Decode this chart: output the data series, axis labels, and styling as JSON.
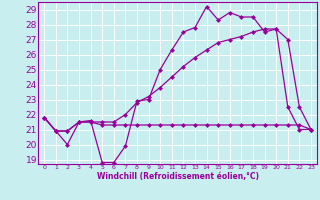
{
  "xlabel": "Windchill (Refroidissement éolien,°C)",
  "bg_color": "#c8eef0",
  "line_color": "#990099",
  "grid_color": "#ffffff",
  "xlim": [
    -0.5,
    23.5
  ],
  "ylim": [
    18.7,
    29.5
  ],
  "yticks": [
    19,
    20,
    21,
    22,
    23,
    24,
    25,
    26,
    27,
    28,
    29
  ],
  "xticks": [
    0,
    1,
    2,
    3,
    4,
    5,
    6,
    7,
    8,
    9,
    10,
    11,
    12,
    13,
    14,
    15,
    16,
    17,
    18,
    19,
    20,
    21,
    22,
    23
  ],
  "line1_x": [
    0,
    1,
    2,
    3,
    4,
    5,
    6,
    7,
    8,
    9,
    10,
    11,
    12,
    13,
    14,
    15,
    16,
    17,
    18,
    19,
    20,
    21,
    22,
    23
  ],
  "line1_y": [
    21.8,
    20.9,
    20.0,
    21.5,
    21.6,
    18.8,
    18.8,
    19.9,
    22.9,
    23.0,
    25.0,
    26.3,
    27.5,
    27.8,
    29.2,
    28.3,
    28.8,
    28.5,
    28.5,
    27.5,
    27.7,
    22.5,
    21.0,
    21.0
  ],
  "line2_x": [
    0,
    1,
    2,
    3,
    4,
    5,
    6,
    7,
    8,
    9,
    10,
    11,
    12,
    13,
    14,
    15,
    16,
    17,
    18,
    19,
    20,
    21,
    22,
    23
  ],
  "line2_y": [
    21.8,
    20.9,
    20.9,
    21.5,
    21.5,
    21.3,
    21.3,
    21.3,
    21.3,
    21.3,
    21.3,
    21.3,
    21.3,
    21.3,
    21.3,
    21.3,
    21.3,
    21.3,
    21.3,
    21.3,
    21.3,
    21.3,
    21.3,
    21.0
  ],
  "line3_x": [
    0,
    1,
    2,
    3,
    4,
    5,
    6,
    7,
    8,
    9,
    10,
    11,
    12,
    13,
    14,
    15,
    16,
    17,
    18,
    19,
    20,
    21,
    22,
    23
  ],
  "line3_y": [
    21.8,
    20.9,
    20.9,
    21.5,
    21.5,
    21.5,
    21.5,
    22.0,
    22.8,
    23.2,
    23.8,
    24.5,
    25.2,
    25.8,
    26.3,
    26.8,
    27.0,
    27.2,
    27.5,
    27.7,
    27.7,
    27.0,
    22.5,
    21.0
  ],
  "ytick_fontsize": 6.5,
  "xtick_fontsize": 4.5,
  "xlabel_fontsize": 5.5
}
